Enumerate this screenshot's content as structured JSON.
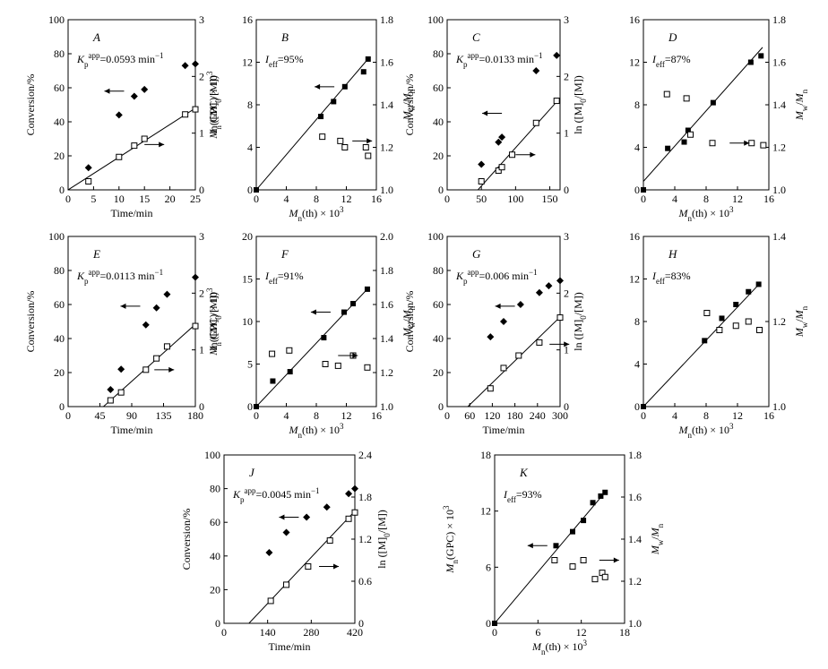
{
  "chart_data": [
    {
      "id": "A",
      "type": "scatter",
      "title": "A",
      "annotation": "K_p^app = 0.0593 min^-1",
      "xlabel": "Time/min",
      "ylabel": "Conversion/%",
      "ylabel2": "ln([M]0/[M])",
      "xlim": [
        0,
        25
      ],
      "ylim": [
        0,
        100
      ],
      "y2lim": [
        0,
        3
      ],
      "xticks": [
        0,
        5,
        10,
        15,
        20,
        25
      ],
      "yticks": [
        0,
        20,
        40,
        60,
        80,
        100
      ],
      "y2ticks": [
        0,
        1,
        2,
        3
      ],
      "series": [
        {
          "name": "Conversion",
          "axis": "left",
          "marker": "diamond-filled",
          "x": [
            4,
            10,
            13,
            15,
            23,
            25
          ],
          "y": [
            13,
            44,
            55,
            59,
            73,
            74
          ]
        },
        {
          "name": "ln([M]0/[M])",
          "axis": "right",
          "marker": "square-open",
          "x": [
            4,
            10,
            13,
            15,
            23,
            25
          ],
          "y": [
            0.15,
            0.58,
            0.78,
            0.9,
            1.33,
            1.42
          ],
          "fit": [
            [
              0,
              0
            ],
            [
              25,
              1.44
            ]
          ]
        }
      ],
      "arrows": [
        {
          "dir": "left",
          "x": 11,
          "y": 58
        },
        {
          "dir": "right",
          "x": 15,
          "y": 0.8
        }
      ]
    },
    {
      "id": "B",
      "type": "scatter",
      "title": "B",
      "annotation": "I_eff = 95%",
      "xlabel": "Mn(th) × 10^3",
      "ylabel": "Mn(GPC) × 10^3",
      "ylabel2": "Mw/Mn",
      "xlim": [
        0,
        16
      ],
      "ylim": [
        0,
        16
      ],
      "y2lim": [
        1.0,
        1.8
      ],
      "xticks": [
        0,
        4,
        8,
        12,
        16
      ],
      "yticks": [
        0,
        4,
        8,
        12,
        16
      ],
      "y2ticks": [
        1.0,
        1.2,
        1.4,
        1.6,
        1.8
      ],
      "series": [
        {
          "name": "Mn(GPC)",
          "axis": "left",
          "marker": "square-filled",
          "x": [
            0,
            8.6,
            10.3,
            11.8,
            14.3,
            14.9
          ],
          "y": [
            0,
            6.9,
            8.3,
            9.7,
            11.1,
            12.3
          ],
          "fit": [
            [
              0,
              0
            ],
            [
              15,
              12.4
            ]
          ]
        },
        {
          "name": "Mw/Mn",
          "axis": "right",
          "marker": "square-open",
          "x": [
            8.8,
            11.2,
            11.8,
            14.6,
            14.9
          ],
          "y": [
            1.25,
            1.23,
            1.2,
            1.2,
            1.16
          ]
        }
      ],
      "arrows": [
        {
          "dir": "left",
          "x": 10.4,
          "y": 9.7
        },
        {
          "dir": "right",
          "x": 12.8,
          "y": 1.23
        }
      ]
    },
    {
      "id": "C",
      "type": "scatter",
      "title": "C",
      "annotation": "K_p^app = 0.0133 min^-1",
      "xlabel": "",
      "ylabel": "Conversion/%",
      "ylabel2": "ln([M]0/[M])",
      "xlim": [
        0,
        165
      ],
      "ylim": [
        0,
        100
      ],
      "y2lim": [
        0,
        3
      ],
      "xticks": [
        0,
        50,
        100,
        150
      ],
      "yticks": [
        0,
        20,
        40,
        60,
        80,
        100
      ],
      "y2ticks": [
        0,
        1,
        2,
        3
      ],
      "series": [
        {
          "name": "Conversion",
          "axis": "left",
          "marker": "diamond-filled",
          "x": [
            50,
            75,
            80,
            130,
            160
          ],
          "y": [
            15,
            28,
            31,
            70,
            79
          ]
        },
        {
          "name": "ln([M]0/[M])",
          "axis": "right",
          "marker": "square-open",
          "x": [
            50,
            75,
            80,
            95,
            130,
            160
          ],
          "y": [
            0.15,
            0.34,
            0.4,
            0.62,
            1.18,
            1.57
          ],
          "fit": [
            [
              45,
              0
            ],
            [
              165,
              1.62
            ]
          ]
        }
      ],
      "arrows": [
        {
          "dir": "left",
          "x": 80,
          "y": 45
        },
        {
          "dir": "right",
          "x": 100,
          "y": 0.62
        }
      ]
    },
    {
      "id": "D",
      "type": "scatter",
      "title": "D",
      "annotation": "I_eff = 87%",
      "xlabel": "Mn(th) × 10^3",
      "ylabel": "",
      "ylabel2": "Mw/Mn",
      "xlim": [
        0,
        16
      ],
      "ylim": [
        0,
        16
      ],
      "y2lim": [
        1.0,
        1.8
      ],
      "xticks": [
        0,
        4,
        8,
        12,
        16
      ],
      "yticks": [
        0,
        4,
        8,
        12,
        16
      ],
      "y2ticks": [
        1.0,
        1.2,
        1.4,
        1.6,
        1.8
      ],
      "series": [
        {
          "name": "Mn(GPC)",
          "axis": "left",
          "marker": "square-filled",
          "x": [
            0,
            3.1,
            5.2,
            5.7,
            8.9,
            13.7,
            15
          ],
          "y": [
            0,
            3.9,
            4.5,
            5.6,
            8.2,
            12,
            12.6
          ],
          "fit": [
            [
              0,
              0.8
            ],
            [
              15.2,
              13.4
            ]
          ]
        },
        {
          "name": "Mw/Mn",
          "axis": "right",
          "marker": "square-open",
          "x": [
            3,
            5.5,
            6,
            8.8,
            13.8,
            15.3
          ],
          "y": [
            1.45,
            1.43,
            1.26,
            1.22,
            1.22,
            1.21
          ]
        }
      ],
      "arrows": [
        {
          "dir": "right",
          "x": 11,
          "y": 1.22
        }
      ]
    },
    {
      "id": "E",
      "type": "scatter",
      "title": "E",
      "annotation": "K_p^app = 0.0113 min^-1",
      "xlabel": "Time/min",
      "ylabel": "Conversion/%",
      "ylabel2": "ln([M]0/[M])",
      "xlim": [
        0,
        180
      ],
      "ylim": [
        0,
        100
      ],
      "y2lim": [
        0,
        3
      ],
      "xticks": [
        0,
        45,
        90,
        135,
        180
      ],
      "yticks": [
        0,
        20,
        40,
        60,
        80,
        100
      ],
      "y2ticks": [
        0,
        1,
        2,
        3
      ],
      "series": [
        {
          "name": "Conversion",
          "axis": "left",
          "marker": "diamond-filled",
          "x": [
            60,
            75,
            110,
            125,
            140,
            180
          ],
          "y": [
            10,
            22,
            48,
            58,
            66,
            76
          ]
        },
        {
          "name": "ln([M]0/[M])",
          "axis": "right",
          "marker": "square-open",
          "x": [
            60,
            75,
            110,
            125,
            140,
            180
          ],
          "y": [
            0.11,
            0.25,
            0.65,
            0.85,
            1.06,
            1.42
          ],
          "fit": [
            [
              50,
              0
            ],
            [
              180,
              1.45
            ]
          ]
        }
      ],
      "arrows": [
        {
          "dir": "left",
          "x": 102,
          "y": 59
        },
        {
          "dir": "right",
          "x": 122,
          "y": 0.65
        }
      ]
    },
    {
      "id": "F",
      "type": "scatter",
      "title": "F",
      "annotation": "I_eff = 91%",
      "xlabel": "Mn(th) × 10^3",
      "ylabel": "Mn(GPC) × 10^3",
      "ylabel2": "Mw/Mn",
      "xlim": [
        0,
        16
      ],
      "ylim": [
        0,
        20
      ],
      "y2lim": [
        1.0,
        2.0
      ],
      "xticks": [
        0,
        4,
        8,
        12,
        16
      ],
      "yticks": [
        0,
        5,
        10,
        15,
        20
      ],
      "y2ticks": [
        1.0,
        1.2,
        1.4,
        1.6,
        1.8,
        2.0
      ],
      "series": [
        {
          "name": "Mn(GPC)",
          "axis": "left",
          "marker": "square-filled",
          "x": [
            0,
            2.2,
            4.5,
            9,
            11.7,
            12.9,
            14.8
          ],
          "y": [
            0,
            3,
            4.1,
            8.1,
            11.1,
            12.1,
            13.8
          ],
          "fit": [
            [
              0,
              0
            ],
            [
              15,
              14
            ]
          ]
        },
        {
          "name": "Mw/Mn",
          "axis": "right",
          "marker": "square-open",
          "x": [
            2.1,
            4.4,
            9.2,
            10.9,
            12.9,
            14.8
          ],
          "y": [
            1.31,
            1.33,
            1.25,
            1.24,
            1.3,
            1.23
          ]
        }
      ],
      "arrows": [
        {
          "dir": "left",
          "x": 9.9,
          "y": 11.1
        },
        {
          "dir": "right",
          "x": 10.9,
          "y": 1.3
        }
      ]
    },
    {
      "id": "G",
      "type": "scatter",
      "title": "G",
      "annotation": "K_p^app = 0.006 min^-1",
      "xlabel": "Time/min",
      "ylabel": "Conversion/%",
      "ylabel2": "ln([M]0/[M])",
      "xlim": [
        0,
        300
      ],
      "ylim": [
        0,
        100
      ],
      "y2lim": [
        0,
        3
      ],
      "xticks": [
        0,
        60,
        120,
        180,
        240,
        300
      ],
      "yticks": [
        0,
        20,
        40,
        60,
        80,
        100
      ],
      "y2ticks": [
        0,
        1,
        2,
        3
      ],
      "series": [
        {
          "name": "Conversion",
          "axis": "left",
          "marker": "diamond-filled",
          "x": [
            115,
            150,
            195,
            245,
            270,
            300
          ],
          "y": [
            41,
            50,
            60,
            67,
            71,
            74
          ]
        },
        {
          "name": "ln([M]0/[M])",
          "axis": "right",
          "marker": "square-open",
          "x": [
            115,
            150,
            190,
            245,
            300
          ],
          "y": [
            0.32,
            0.68,
            0.9,
            1.13,
            1.57
          ],
          "fit": [
            [
              55,
              0
            ],
            [
              300,
              1.58
            ]
          ]
        }
      ],
      "arrows": [
        {
          "dir": "left",
          "x": 180,
          "y": 59
        },
        {
          "dir": "right",
          "x": 272,
          "y": 1.1
        }
      ]
    },
    {
      "id": "H",
      "type": "scatter",
      "title": "H",
      "annotation": "I_eff = 83%",
      "xlabel": "Mn(th) × 10^3",
      "ylabel": "",
      "ylabel2": "Mw/Mn",
      "xlim": [
        0,
        16
      ],
      "ylim": [
        0,
        16
      ],
      "y2lim": [
        1.0,
        1.4
      ],
      "xticks": [
        0,
        4,
        8,
        12,
        16
      ],
      "yticks": [
        0,
        4,
        8,
        12,
        16
      ],
      "y2ticks": [
        1.0,
        1.2,
        1.4
      ],
      "series": [
        {
          "name": "Mn(GPC)",
          "axis": "left",
          "marker": "square-filled",
          "x": [
            0,
            7.8,
            10,
            11.8,
            13.4,
            14.7
          ],
          "y": [
            0,
            6.2,
            8.3,
            9.6,
            10.8,
            11.5
          ],
          "fit": [
            [
              0,
              0
            ],
            [
              15,
              11.7
            ]
          ]
        },
        {
          "name": "Mw/Mn",
          "axis": "right",
          "marker": "square-open",
          "x": [
            8.1,
            9.7,
            11.8,
            13.4,
            14.8
          ],
          "y": [
            1.22,
            1.18,
            1.19,
            1.2,
            1.18
          ]
        }
      ],
      "arrows": []
    },
    {
      "id": "J",
      "type": "scatter",
      "title": "J",
      "annotation": "K_p^app = 0.0045 min^-1",
      "xlabel": "Time/min",
      "ylabel": "Conversion/%",
      "ylabel2": "ln([M]0/[M])",
      "xlim": [
        0,
        420
      ],
      "ylim": [
        0,
        100
      ],
      "y2lim": [
        0,
        2.4
      ],
      "xticks": [
        0,
        140,
        280,
        420
      ],
      "yticks": [
        0,
        20,
        40,
        60,
        80,
        100
      ],
      "y2ticks": [
        0,
        0.6,
        1.2,
        1.8,
        2.4
      ],
      "series": [
        {
          "name": "Conversion",
          "axis": "left",
          "marker": "diamond-filled",
          "x": [
            145,
            200,
            265,
            330,
            400,
            420
          ],
          "y": [
            42,
            54,
            63,
            69,
            77,
            80
          ]
        },
        {
          "name": "ln([M]0/[M])",
          "axis": "right",
          "marker": "square-open",
          "x": [
            150,
            200,
            270,
            340,
            400,
            420
          ],
          "y": [
            0.32,
            0.55,
            0.81,
            1.18,
            1.49,
            1.58
          ],
          "fit": [
            [
              80,
              0
            ],
            [
              420,
              1.6
            ]
          ]
        }
      ],
      "arrows": [
        {
          "dir": "left",
          "x": 240,
          "y": 63
        },
        {
          "dir": "right",
          "x": 305,
          "y": 0.81
        }
      ]
    },
    {
      "id": "K",
      "type": "scatter",
      "title": "K",
      "annotation": "I_eff = 93%",
      "xlabel": "Mn(th) × 10^3",
      "ylabel": "Mn(GPC) × 10^3",
      "ylabel2": "Mw/Mn",
      "xlim": [
        0,
        18
      ],
      "ylim": [
        0,
        18
      ],
      "y2lim": [
        1.0,
        1.8
      ],
      "xticks": [
        0,
        6,
        12,
        18
      ],
      "yticks": [
        0,
        6,
        12,
        18
      ],
      "y2ticks": [
        1.0,
        1.2,
        1.4,
        1.6,
        1.8
      ],
      "series": [
        {
          "name": "Mn(GPC)",
          "axis": "left",
          "marker": "square-filled",
          "x": [
            0,
            8.5,
            10.8,
            12.3,
            13.6,
            14.7,
            15.3
          ],
          "y": [
            0,
            8.3,
            9.8,
            11,
            12.9,
            13.6,
            14
          ],
          "fit": [
            [
              0,
              0
            ],
            [
              15.5,
              14.2
            ]
          ]
        },
        {
          "name": "Mw/Mn",
          "axis": "right",
          "marker": "square-open",
          "x": [
            8.3,
            10.8,
            12.3,
            13.9,
            14.9,
            15.3
          ],
          "y": [
            1.3,
            1.27,
            1.3,
            1.21,
            1.24,
            1.22
          ]
        }
      ],
      "arrows": [
        {
          "dir": "left",
          "x": 7.3,
          "y": 8.3
        },
        {
          "dir": "right",
          "x": 14.5,
          "y": 1.3
        }
      ]
    }
  ]
}
